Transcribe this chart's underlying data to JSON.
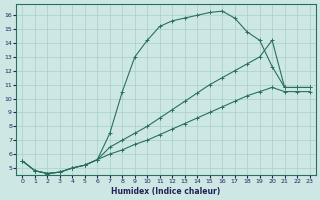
{
  "xlabel": "Humidex (Indice chaleur)",
  "bg_color": "#cde8e4",
  "line_color": "#2a6e62",
  "grid_color": "#aacfc9",
  "xlim": [
    -0.5,
    23.5
  ],
  "ylim": [
    4.5,
    16.8
  ],
  "xticks": [
    0,
    1,
    2,
    3,
    4,
    5,
    6,
    7,
    8,
    9,
    10,
    11,
    12,
    13,
    14,
    15,
    16,
    17,
    18,
    19,
    20,
    21,
    22,
    23
  ],
  "yticks": [
    5,
    6,
    7,
    8,
    9,
    10,
    11,
    12,
    13,
    14,
    15,
    16
  ],
  "curve1_x": [
    0,
    1,
    2,
    3,
    4,
    5,
    6,
    7,
    8,
    9,
    10,
    11,
    12,
    13,
    14,
    15,
    16,
    17,
    18,
    19,
    20,
    21,
    22,
    23
  ],
  "curve1_y": [
    5.5,
    4.8,
    4.6,
    4.7,
    5.0,
    5.2,
    5.6,
    7.5,
    10.5,
    13.0,
    14.2,
    15.2,
    15.6,
    15.8,
    16.0,
    16.2,
    16.3,
    15.8,
    14.8,
    14.2,
    12.3,
    10.8,
    10.8,
    10.8
  ],
  "curve2_x": [
    0,
    1,
    2,
    3,
    4,
    5,
    6,
    7,
    8,
    9,
    10,
    11,
    12,
    13,
    14,
    15,
    16,
    17,
    18,
    19,
    20,
    21,
    22,
    23
  ],
  "curve2_y": [
    5.5,
    4.8,
    4.6,
    4.7,
    5.0,
    5.2,
    5.6,
    6.5,
    7.0,
    7.5,
    8.0,
    8.6,
    9.2,
    9.8,
    10.4,
    11.0,
    11.5,
    12.0,
    12.5,
    13.0,
    14.2,
    10.8,
    10.8,
    10.8
  ],
  "curve3_x": [
    0,
    1,
    2,
    3,
    4,
    5,
    6,
    7,
    8,
    9,
    10,
    11,
    12,
    13,
    14,
    15,
    16,
    17,
    18,
    19,
    20,
    21,
    22,
    23
  ],
  "curve3_y": [
    5.5,
    4.8,
    4.6,
    4.7,
    5.0,
    5.2,
    5.6,
    6.0,
    6.3,
    6.7,
    7.0,
    7.4,
    7.8,
    8.2,
    8.6,
    9.0,
    9.4,
    9.8,
    10.2,
    10.5,
    10.8,
    10.5,
    10.5,
    10.5
  ]
}
